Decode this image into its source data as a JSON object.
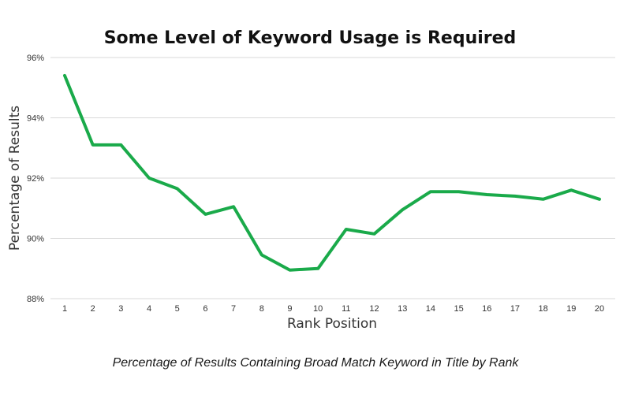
{
  "chart_data": {
    "type": "line",
    "title": "Some Level of Keyword Usage is Required",
    "xlabel": "Rank Position",
    "ylabel": "Percentage of Results",
    "caption": "Percentage of Results Containing Broad Match Keyword in Title by Rank",
    "ylim": [
      88,
      96
    ],
    "yticks": [
      96,
      94,
      92,
      90,
      88
    ],
    "ytick_labels": [
      "96%",
      "94%",
      "92%",
      "90%",
      "88%"
    ],
    "categories": [
      "1",
      "2",
      "3",
      "4",
      "5",
      "6",
      "7",
      "8",
      "9",
      "10",
      "11",
      "12",
      "13",
      "14",
      "15",
      "16",
      "17",
      "18",
      "19",
      "20"
    ],
    "series": [
      {
        "values": [
          95.4,
          93.1,
          93.1,
          92.0,
          91.65,
          90.8,
          91.05,
          89.45,
          88.95,
          89.0,
          90.3,
          90.15,
          90.95,
          91.55,
          91.55,
          91.45,
          91.4,
          91.3,
          91.6,
          91.3
        ],
        "color": "#1aaa4a"
      }
    ],
    "grid": true,
    "line_color": "#1aaa4a"
  }
}
